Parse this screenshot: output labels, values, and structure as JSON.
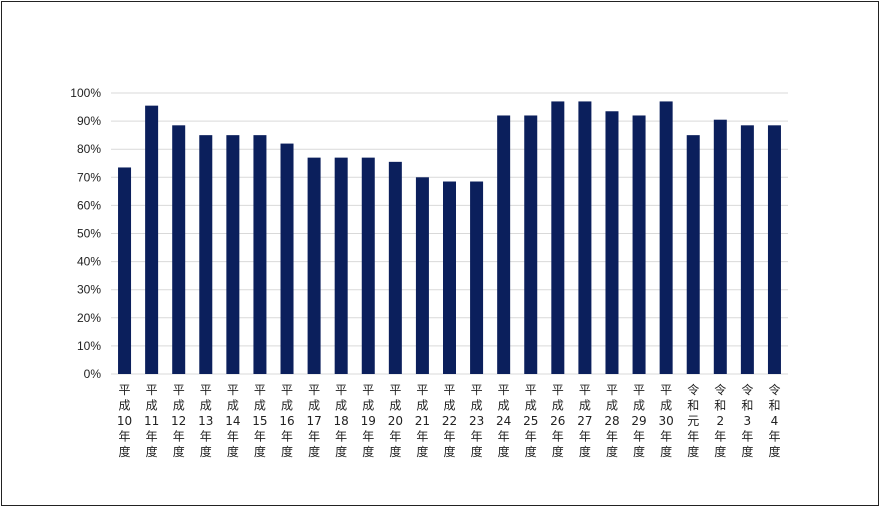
{
  "chart_data": {
    "type": "bar",
    "title": "",
    "xlabel": "",
    "ylabel": "",
    "ylim": [
      0,
      100
    ],
    "ytick_step": 10,
    "ytick_suffix": "%",
    "grid": true,
    "legend": "none",
    "bar_color": "#0b1f5c",
    "grid_color": "#d9d9d9",
    "categories": [
      "平成10年度",
      "平成11年度",
      "平成12年度",
      "平成13年度",
      "平成14年度",
      "平成15年度",
      "平成16年度",
      "平成17年度",
      "平成18年度",
      "平成19年度",
      "平成20年度",
      "平成21年度",
      "平成22年度",
      "平成23年度",
      "平成24年度",
      "平成25年度",
      "平成26年度",
      "平成27年度",
      "平成28年度",
      "平成29年度",
      "平成30年度",
      "令和元年度",
      "令和2年度",
      "令和3年度",
      "令和4年度"
    ],
    "category_lines": [
      [
        "平",
        "成",
        "10",
        "年",
        "度"
      ],
      [
        "平",
        "成",
        "11",
        "年",
        "度"
      ],
      [
        "平",
        "成",
        "12",
        "年",
        "度"
      ],
      [
        "平",
        "成",
        "13",
        "年",
        "度"
      ],
      [
        "平",
        "成",
        "14",
        "年",
        "度"
      ],
      [
        "平",
        "成",
        "15",
        "年",
        "度"
      ],
      [
        "平",
        "成",
        "16",
        "年",
        "度"
      ],
      [
        "平",
        "成",
        "17",
        "年",
        "度"
      ],
      [
        "平",
        "成",
        "18",
        "年",
        "度"
      ],
      [
        "平",
        "成",
        "19",
        "年",
        "度"
      ],
      [
        "平",
        "成",
        "20",
        "年",
        "度"
      ],
      [
        "平",
        "成",
        "21",
        "年",
        "度"
      ],
      [
        "平",
        "成",
        "22",
        "年",
        "度"
      ],
      [
        "平",
        "成",
        "23",
        "年",
        "度"
      ],
      [
        "平",
        "成",
        "24",
        "年",
        "度"
      ],
      [
        "平",
        "成",
        "25",
        "年",
        "度"
      ],
      [
        "平",
        "成",
        "26",
        "年",
        "度"
      ],
      [
        "平",
        "成",
        "27",
        "年",
        "度"
      ],
      [
        "平",
        "成",
        "28",
        "年",
        "度"
      ],
      [
        "平",
        "成",
        "29",
        "年",
        "度"
      ],
      [
        "平",
        "成",
        "30",
        "年",
        "度"
      ],
      [
        "令",
        "和",
        "元",
        "年",
        "度"
      ],
      [
        "令",
        "和",
        "2",
        "年",
        "度"
      ],
      [
        "令",
        "和",
        "3",
        "年",
        "度"
      ],
      [
        "令",
        "和",
        "4",
        "年",
        "度"
      ]
    ],
    "values": [
      73.5,
      95.5,
      88.5,
      85,
      85,
      85,
      82,
      77,
      77,
      77,
      75.5,
      70,
      68.5,
      68.5,
      92,
      92,
      97,
      97,
      93.5,
      92,
      97,
      85,
      90.5,
      88.5,
      88.5
    ]
  }
}
